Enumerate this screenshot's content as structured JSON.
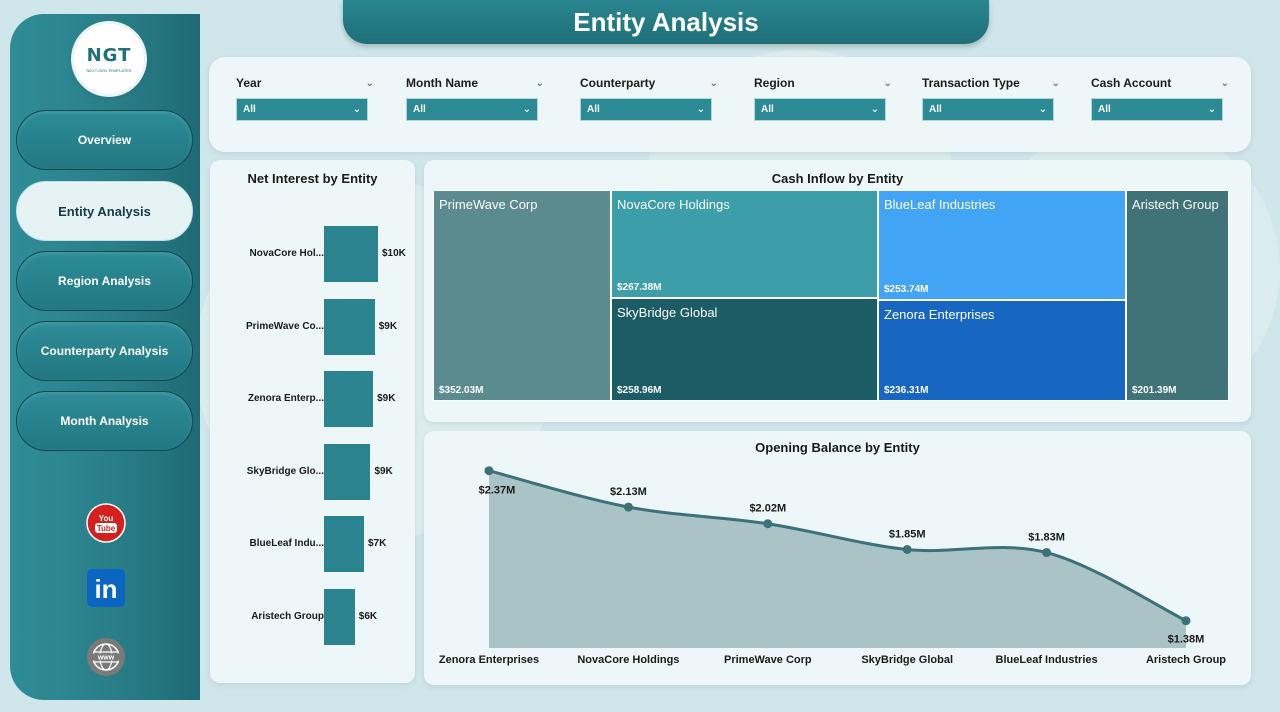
{
  "header": {
    "title": "Entity Analysis"
  },
  "logo": {
    "text": "NGT",
    "subtitle": "NEXT-GEN TEMPLATES"
  },
  "sidebar": {
    "items": [
      {
        "label": "Overview",
        "active": false
      },
      {
        "label": "Entity Analysis",
        "active": true
      },
      {
        "label": "Region Analysis",
        "active": false
      },
      {
        "label": "Counterparty Analysis",
        "active": false
      },
      {
        "label": "Month Analysis",
        "active": false
      }
    ],
    "social": [
      {
        "icon": "youtube-icon",
        "label": "You Tube"
      },
      {
        "icon": "linkedin-icon",
        "label": "in"
      },
      {
        "icon": "website-icon",
        "label": "www"
      }
    ]
  },
  "filters": [
    {
      "label": "Year",
      "value": "All"
    },
    {
      "label": "Month Name",
      "value": "All"
    },
    {
      "label": "Counterparty",
      "value": "All"
    },
    {
      "label": "Region",
      "value": "All"
    },
    {
      "label": "Transaction Type",
      "value": "All"
    },
    {
      "label": "Cash Account",
      "value": "All"
    }
  ],
  "colors": {
    "accent": "#2c8490",
    "sidebar": "#2a7e88",
    "background": "#cfe6ea"
  },
  "net_interest": {
    "title": "Net Interest by Entity",
    "bars": [
      {
        "label": "NovaCore Hol...",
        "value": 10,
        "display": "$10K"
      },
      {
        "label": "PrimeWave Co...",
        "value": 9.4,
        "display": "$9K"
      },
      {
        "label": "Zenora Enterp...",
        "value": 9.1,
        "display": "$9K"
      },
      {
        "label": "SkyBridge Glo...",
        "value": 8.6,
        "display": "$9K"
      },
      {
        "label": "BlueLeaf Indu...",
        "value": 7.4,
        "display": "$7K"
      },
      {
        "label": "Aristech Group",
        "value": 5.7,
        "display": "$6K"
      }
    ]
  },
  "cash_inflow": {
    "title": "Cash Inflow by Entity",
    "cells": [
      {
        "name": "PrimeWave Corp",
        "value": "$352.03M",
        "color": "#5b8b8e"
      },
      {
        "name": "NovaCore Holdings",
        "value": "$267.38M",
        "color": "#3b9ea8"
      },
      {
        "name": "SkyBridge Global",
        "value": "$258.96M",
        "color": "#1c5c64"
      },
      {
        "name": "BlueLeaf Industries",
        "value": "$253.74M",
        "color": "#42a4f5"
      },
      {
        "name": "Zenora Enterprises",
        "value": "$236.31M",
        "color": "#1766c2"
      },
      {
        "name": "Aristech Group",
        "value": "$201.39M",
        "color": "#3f7377"
      }
    ]
  },
  "chart_data": {
    "type": "area",
    "title": "Opening Balance by Entity",
    "categories": [
      "Zenora Enterprises",
      "NovaCore Holdings",
      "PrimeWave Corp",
      "SkyBridge Global",
      "BlueLeaf Industries",
      "Aristech Group"
    ],
    "values": [
      2.37,
      2.13,
      2.02,
      1.85,
      1.83,
      1.38
    ],
    "labels": [
      "$2.37M",
      "$2.13M",
      "$2.02M",
      "$1.85M",
      "$1.83M",
      "$1.38M"
    ],
    "ylim": [
      1.2,
      2.5
    ],
    "grid": false
  }
}
